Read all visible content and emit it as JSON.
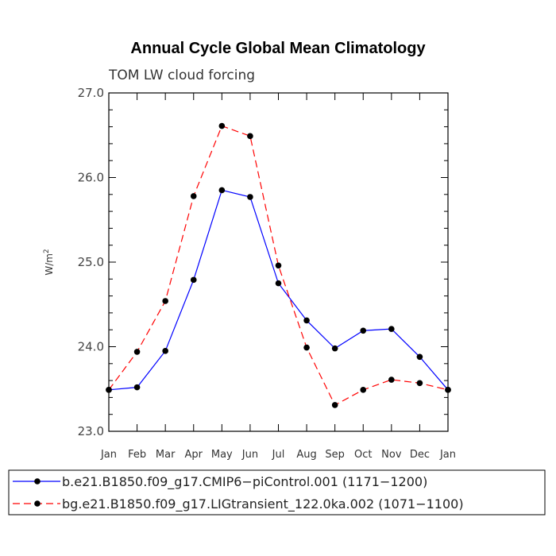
{
  "chart_data": {
    "type": "line",
    "title": "Annual Cycle Global Mean Climatology",
    "subtitle": "TOM LW cloud forcing",
    "ylabel_main": "W/m",
    "ylabel_sup": "2",
    "xlabel": "",
    "categories": [
      "Jan",
      "Feb",
      "Mar",
      "Apr",
      "May",
      "Jun",
      "Jul",
      "Aug",
      "Sep",
      "Oct",
      "Nov",
      "Dec",
      "Jan"
    ],
    "ylim": [
      23.0,
      27.0
    ],
    "yticks": [
      "23.0",
      "24.0",
      "25.0",
      "26.0",
      "27.0"
    ],
    "grid": false,
    "legend_position": "bottom",
    "series": [
      {
        "name": "b.e21.B1850.f09_g17.CMIP6−piControl.001 (1171−1200)",
        "color": "#0000ff",
        "dash": "solid",
        "values": [
          23.49,
          23.52,
          23.95,
          24.79,
          25.85,
          25.77,
          24.75,
          24.31,
          23.98,
          24.19,
          24.21,
          23.88,
          23.49
        ]
      },
      {
        "name": "bg.e21.B1850.f09_g17.LIGtransient_122.0ka.002 (1071−1100)",
        "color": "#ff0000",
        "dash": "dashed",
        "values": [
          23.49,
          23.94,
          24.54,
          25.78,
          26.61,
          26.49,
          24.96,
          23.99,
          23.31,
          23.49,
          23.61,
          23.57,
          23.49
        ]
      }
    ]
  }
}
